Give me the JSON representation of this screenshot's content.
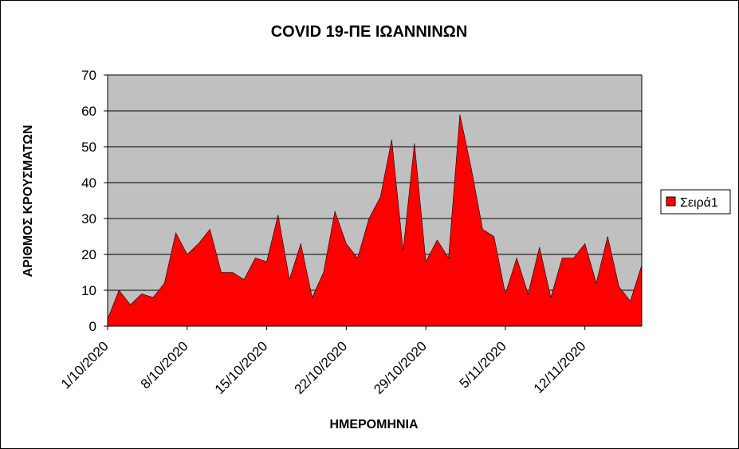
{
  "chart_data": {
    "type": "area",
    "title": "COVID 19-ΠΕ ΙΩΑΝΝΙΝΩΝ",
    "xlabel": "ΗΜΕΡΟΜΗΝΙΑ",
    "ylabel": "ΑΡΙΘΜΟΣ ΚΡΟΥΣΜΑΤΩΝ",
    "ylim": [
      0,
      70
    ],
    "yticks": [
      0,
      10,
      20,
      30,
      40,
      50,
      60,
      70
    ],
    "x_tick_labels": [
      "1/10/2020",
      "8/10/2020",
      "15/10/2020",
      "22/10/2020",
      "29/10/2020",
      "5/11/2020",
      "12/11/2020"
    ],
    "grid": true,
    "plot_background": "#c0c0c0",
    "legend_position": "right",
    "x": [
      "1/10/2020",
      "2/10/2020",
      "3/10/2020",
      "4/10/2020",
      "5/10/2020",
      "6/10/2020",
      "7/10/2020",
      "8/10/2020",
      "9/10/2020",
      "10/10/2020",
      "11/10/2020",
      "12/10/2020",
      "13/10/2020",
      "14/10/2020",
      "15/10/2020",
      "16/10/2020",
      "17/10/2020",
      "18/10/2020",
      "19/10/2020",
      "20/10/2020",
      "21/10/2020",
      "22/10/2020",
      "23/10/2020",
      "24/10/2020",
      "25/10/2020",
      "26/10/2020",
      "27/10/2020",
      "28/10/2020",
      "29/10/2020",
      "30/10/2020",
      "31/10/2020",
      "1/11/2020",
      "2/11/2020",
      "3/11/2020",
      "4/11/2020",
      "5/11/2020",
      "6/11/2020",
      "7/11/2020",
      "8/11/2020",
      "9/11/2020",
      "10/11/2020",
      "11/11/2020",
      "12/11/2020",
      "13/11/2020",
      "14/11/2020",
      "15/11/2020",
      "16/11/2020",
      "17/11/2020"
    ],
    "series": [
      {
        "name": "Σειρά1",
        "color": "#ff0000",
        "values": [
          2,
          10,
          6,
          9,
          8,
          12,
          26,
          20,
          23,
          27,
          15,
          15,
          13,
          19,
          18,
          31,
          13,
          23,
          8,
          15,
          32,
          23,
          19,
          30,
          36,
          52,
          21,
          51,
          18,
          24,
          19,
          59,
          44,
          27,
          25,
          9,
          19,
          9,
          22,
          8,
          19,
          19,
          23,
          12,
          25,
          11,
          7,
          17
        ]
      }
    ]
  }
}
